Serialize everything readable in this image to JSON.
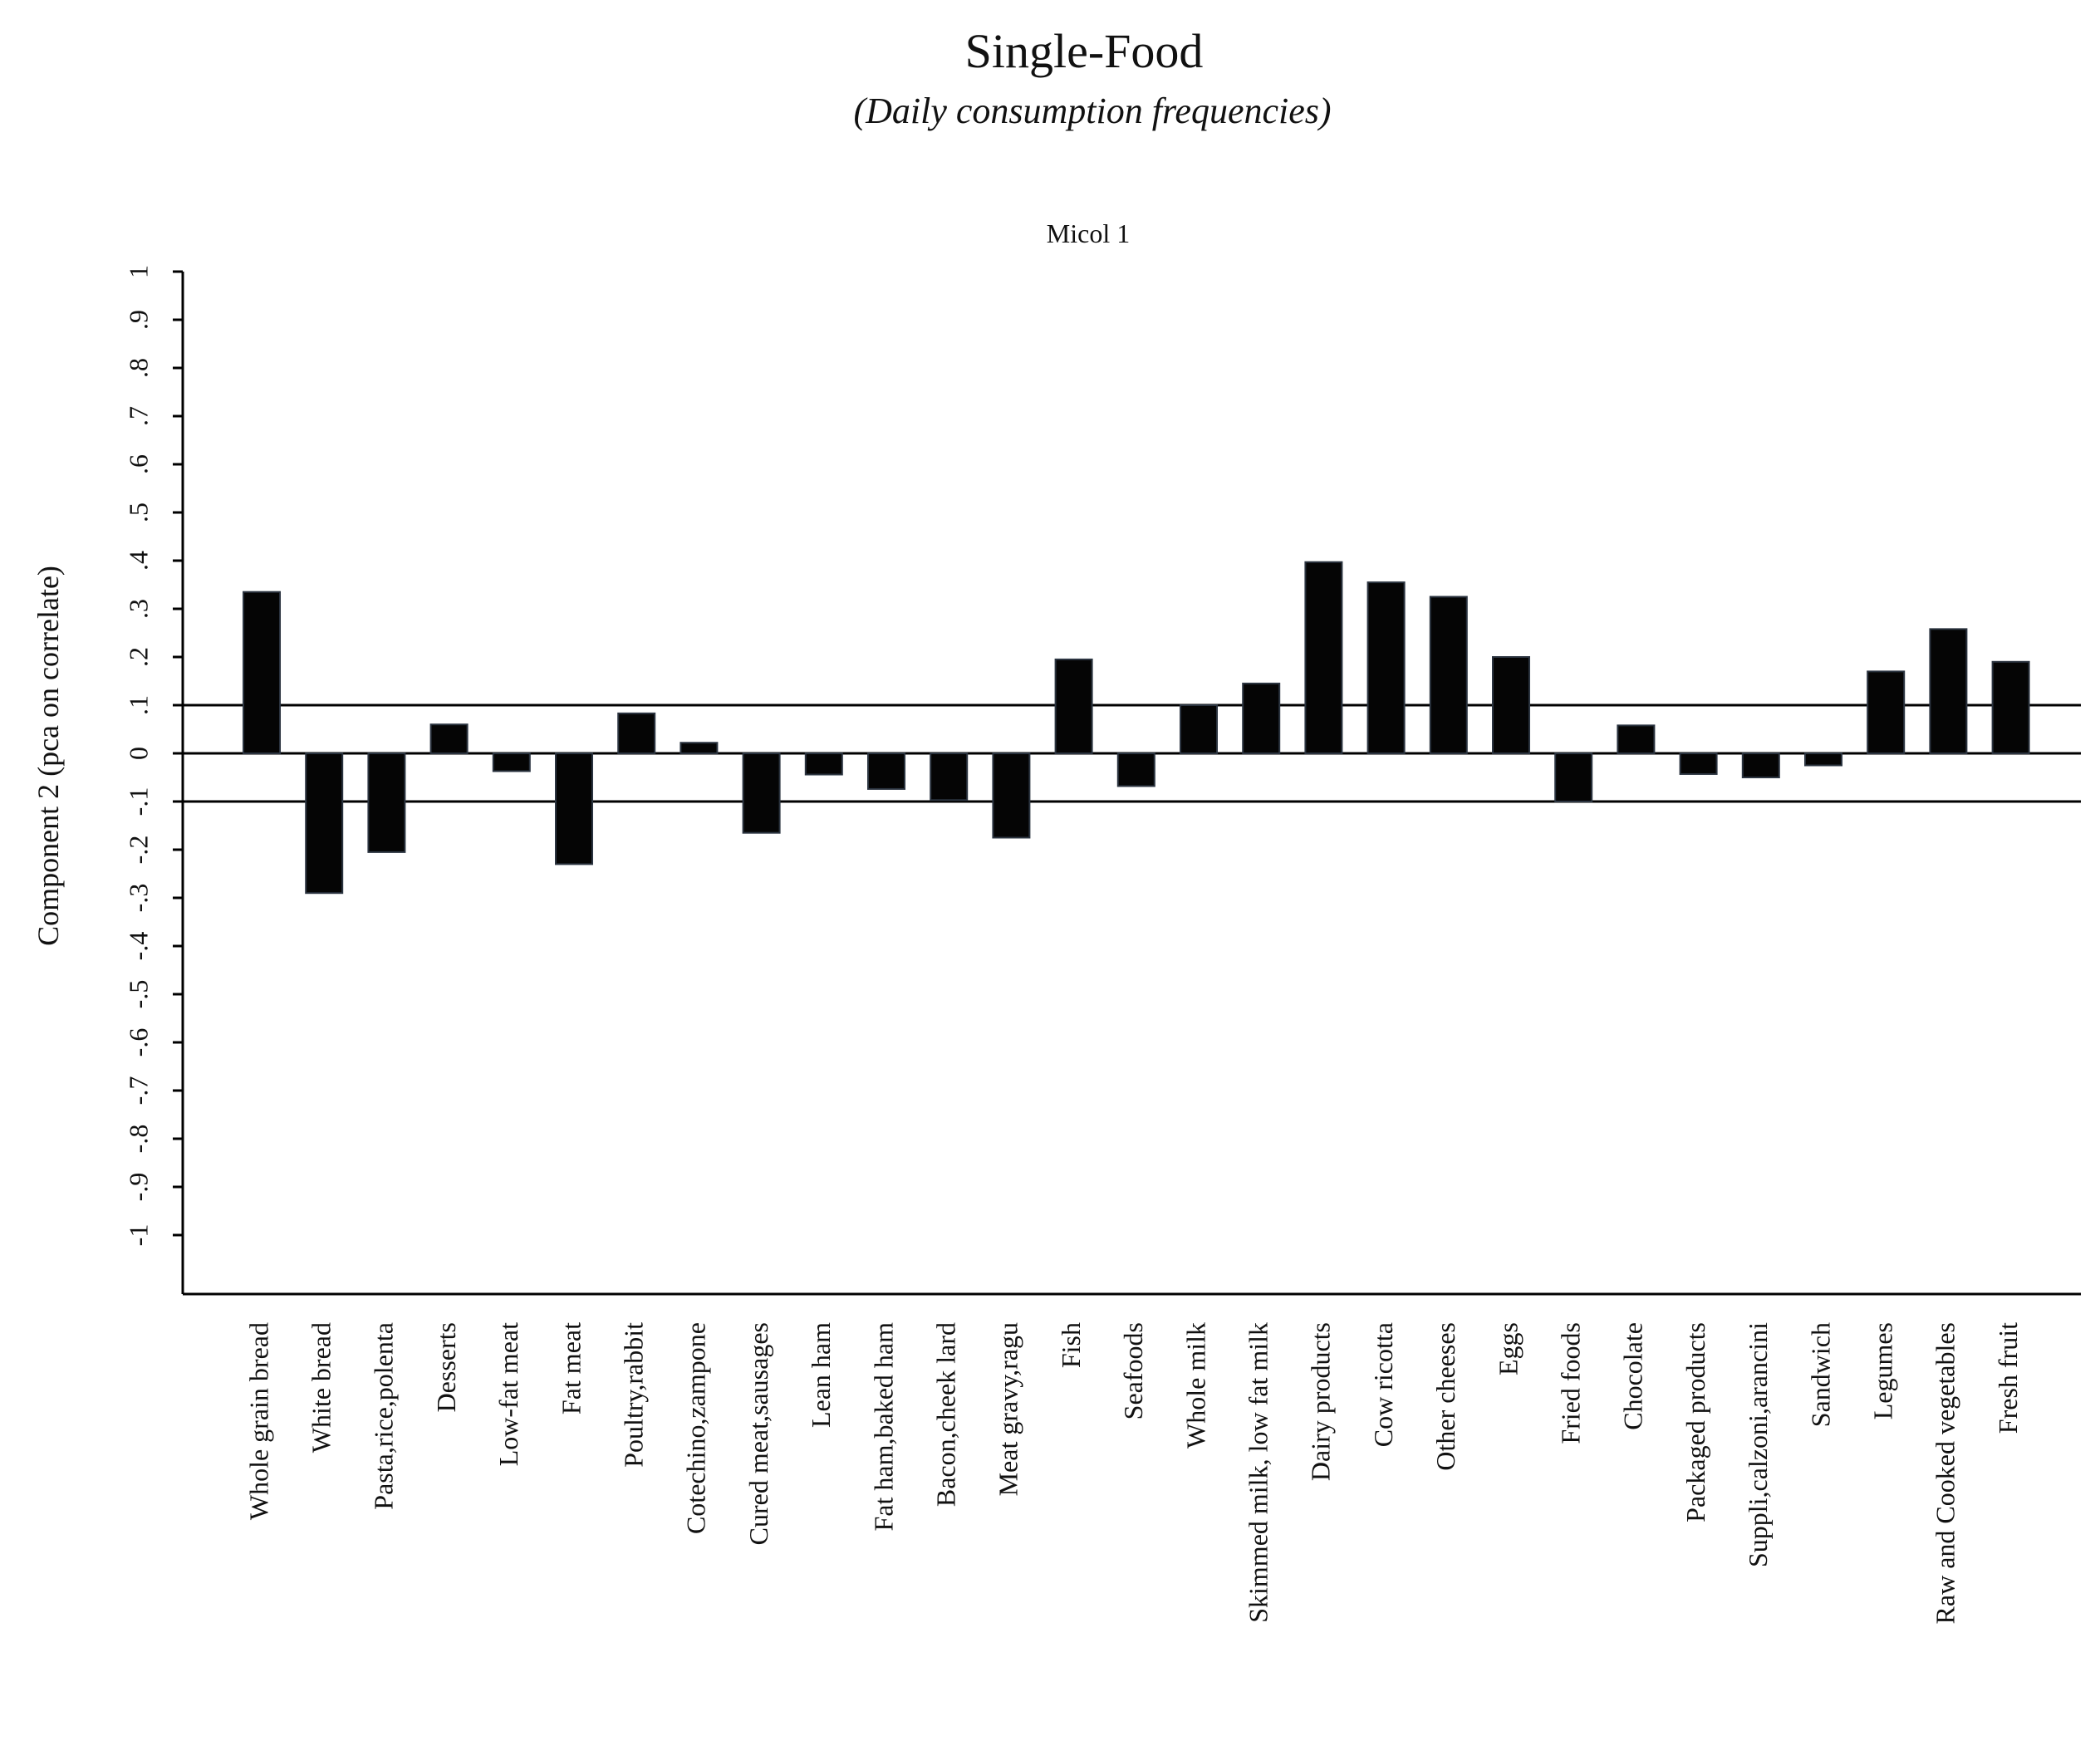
{
  "header": {
    "title": "Single-Food",
    "subtitle": "(Daily consumption frequencies)"
  },
  "chart_data": {
    "type": "bar",
    "title": "Micol 1",
    "xlabel": "",
    "ylabel": "Component 2 (pca on correlate)",
    "ylim": [
      -1.1,
      1.0
    ],
    "yticks": [
      1,
      0.9,
      0.8,
      0.7,
      0.6,
      0.5,
      0.4,
      0.3,
      0.2,
      0.1,
      0,
      -0.1,
      -0.2,
      -0.3,
      -0.4,
      -0.5,
      -0.6,
      -0.7,
      -0.8,
      -0.9,
      -1
    ],
    "ytick_labels": [
      "1",
      ".9",
      ".8",
      ".7",
      ".6",
      ".5",
      ".4",
      ".3",
      ".2",
      ".1",
      "0",
      "-.1",
      "-.2",
      "-.3",
      "-.4",
      "-.5",
      "-.6",
      "-.7",
      "-.8",
      "-.9",
      "-1"
    ],
    "reference_lines": [
      0.1,
      0,
      -0.1
    ],
    "categories": [
      "Whole grain bread",
      "White bread",
      "Pasta,rice,polenta",
      "Desserts",
      "Low-fat meat",
      "Fat meat",
      "Poultry,rabbit",
      "Cotechino,zampone",
      "Cured meat,sausages",
      "Lean ham",
      "Fat ham,baked ham",
      "Bacon,cheek lard",
      "Meat gravy,ragu",
      "Fish",
      "Seafoods",
      "Whole milk",
      "Skimmed milk, low fat milk",
      "Dairy products",
      "Cow ricotta",
      "Other cheeses",
      "Eggs",
      "Fried foods",
      "Chocolate",
      "Packaged products",
      "Suppli,calzoni,arancini",
      "Sandwich",
      "Legumes",
      "Raw and Cooked vegetables",
      "Fresh fruit"
    ],
    "values": [
      0.335,
      -0.29,
      -0.205,
      0.06,
      -0.037,
      -0.23,
      0.083,
      0.022,
      -0.165,
      -0.044,
      -0.074,
      -0.097,
      -0.175,
      0.195,
      -0.068,
      0.1,
      0.145,
      0.397,
      0.355,
      0.325,
      0.2,
      -0.1,
      0.058,
      -0.043,
      -0.05,
      -0.025,
      0.17,
      0.258,
      0.19
    ]
  }
}
